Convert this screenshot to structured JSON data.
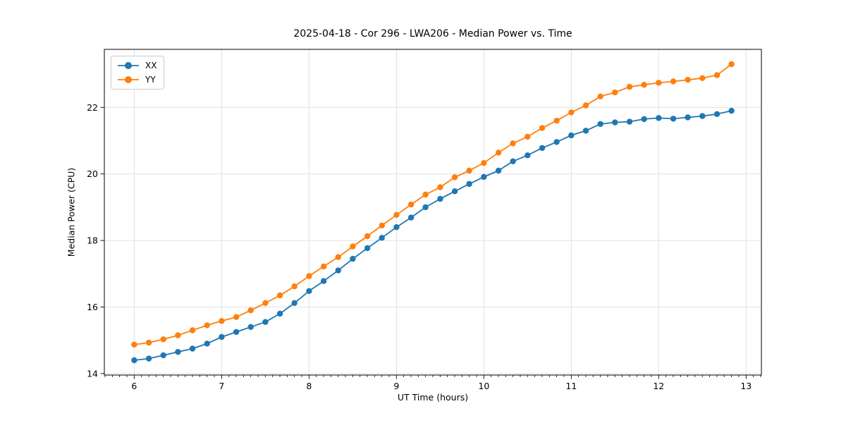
{
  "chart_data": {
    "type": "line",
    "title": "2025-04-18 - Cor 296 - LWA206 - Median Power vs. Time",
    "xlabel": "UT Time (hours)",
    "ylabel": "Median Power (CPU)",
    "x": [
      6.0,
      6.167,
      6.333,
      6.5,
      6.667,
      6.833,
      7.0,
      7.167,
      7.333,
      7.5,
      7.667,
      7.833,
      8.0,
      8.167,
      8.333,
      8.5,
      8.667,
      8.833,
      9.0,
      9.167,
      9.333,
      9.5,
      9.667,
      9.833,
      10.0,
      10.167,
      10.333,
      10.5,
      10.667,
      10.833,
      11.0,
      11.167,
      11.333,
      11.5,
      11.667,
      11.833,
      12.0,
      12.167,
      12.333,
      12.5,
      12.667,
      12.833
    ],
    "series": [
      {
        "name": "XX",
        "color": "#1f77b4",
        "values": [
          14.4,
          14.45,
          14.55,
          14.65,
          14.75,
          14.9,
          15.1,
          15.25,
          15.4,
          15.55,
          15.8,
          16.12,
          16.48,
          16.78,
          17.1,
          17.45,
          17.77,
          18.08,
          18.4,
          18.69,
          19.0,
          19.25,
          19.48,
          19.7,
          19.91,
          20.1,
          20.38,
          20.56,
          20.78,
          20.96,
          21.16,
          21.3,
          21.5,
          21.55,
          21.57,
          21.65,
          21.68,
          21.66,
          21.7,
          21.74,
          21.8,
          21.9
        ]
      },
      {
        "name": "YY",
        "color": "#ff7f0e",
        "values": [
          14.87,
          14.93,
          15.03,
          15.15,
          15.3,
          15.45,
          15.58,
          15.7,
          15.9,
          16.12,
          16.35,
          16.62,
          16.93,
          17.22,
          17.5,
          17.82,
          18.13,
          18.45,
          18.77,
          19.08,
          19.38,
          19.6,
          19.9,
          20.1,
          20.33,
          20.64,
          20.92,
          21.12,
          21.38,
          21.6,
          21.85,
          22.06,
          22.33,
          22.45,
          22.62,
          22.68,
          22.74,
          22.78,
          22.83,
          22.88,
          22.97,
          23.3
        ]
      }
    ],
    "xticks": [
      6,
      7,
      8,
      9,
      10,
      11,
      12,
      13
    ],
    "yticks": [
      14,
      16,
      18,
      20,
      22
    ],
    "xlim": [
      5.658,
      13.175
    ],
    "ylim": [
      13.955,
      23.745
    ],
    "grid": true,
    "legend_position": "upper left",
    "marker": "circle",
    "minor_tick_step_x": 0.08333,
    "colors": {
      "grid": "#e0e0e0",
      "spine": "#000000",
      "tick_label": "#000000",
      "legend_border": "#cccccc"
    }
  }
}
